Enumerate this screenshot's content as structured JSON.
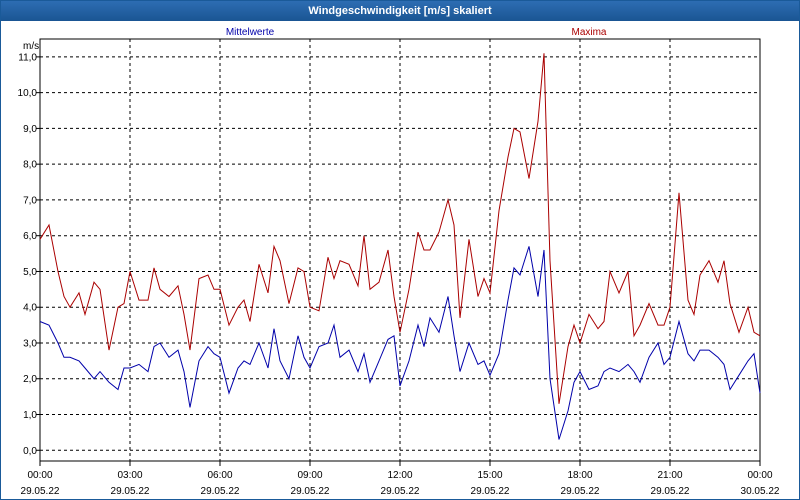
{
  "window": {
    "title": "Windgeschwindigkeit [m/s] skaliert"
  },
  "chart_data": {
    "type": "line",
    "ylabel": "m/s",
    "ylim": [
      -0.3,
      11.5
    ],
    "yticks": [
      0,
      1,
      2,
      3,
      4,
      5,
      6,
      7,
      8,
      9,
      10,
      11
    ],
    "ytick_labels": [
      "0,0",
      "1,0",
      "2,0",
      "3,0",
      "4,0",
      "5,0",
      "6,0",
      "7,0",
      "8,0",
      "9,0",
      "10,0",
      "11,0"
    ],
    "x_ticks": [
      {
        "time": "00:00",
        "date": "29.05.22"
      },
      {
        "time": "03:00",
        "date": "29.05.22"
      },
      {
        "time": "06:00",
        "date": "29.05.22"
      },
      {
        "time": "09:00",
        "date": "29.05.22"
      },
      {
        "time": "12:00",
        "date": "29.05.22"
      },
      {
        "time": "15:00",
        "date": "29.05.22"
      },
      {
        "time": "18:00",
        "date": "29.05.22"
      },
      {
        "time": "21:00",
        "date": "29.05.22"
      },
      {
        "time": "00:00",
        "date": "30.05.22"
      }
    ],
    "grid": true,
    "colors": {
      "mittelwerte": "#0000aa",
      "maxima": "#aa0000",
      "grid": "#000000"
    },
    "series": [
      {
        "name": "Mittelwerte",
        "color": "#0000aa",
        "x_hours": [
          0.0,
          0.3,
          0.6,
          0.8,
          1.0,
          1.3,
          1.5,
          1.8,
          2.0,
          2.3,
          2.6,
          2.8,
          3.0,
          3.3,
          3.6,
          3.8,
          4.0,
          4.3,
          4.6,
          4.8,
          5.0,
          5.3,
          5.6,
          5.8,
          6.0,
          6.3,
          6.6,
          6.8,
          7.0,
          7.3,
          7.6,
          7.8,
          8.0,
          8.3,
          8.6,
          8.8,
          9.0,
          9.3,
          9.6,
          9.8,
          10.0,
          10.3,
          10.6,
          10.8,
          11.0,
          11.3,
          11.6,
          11.8,
          12.0,
          12.3,
          12.6,
          12.8,
          13.0,
          13.3,
          13.6,
          13.8,
          14.0,
          14.3,
          14.6,
          14.8,
          15.0,
          15.3,
          15.6,
          15.8,
          16.0,
          16.3,
          16.6,
          16.8,
          17.0,
          17.3,
          17.6,
          17.8,
          18.0,
          18.3,
          18.6,
          18.8,
          19.0,
          19.3,
          19.6,
          19.8,
          20.0,
          20.3,
          20.6,
          20.8,
          21.0,
          21.3,
          21.6,
          21.8,
          22.0,
          22.3,
          22.6,
          22.8,
          23.0,
          23.3,
          23.6,
          23.8,
          24.0
        ],
        "values": [
          3.6,
          3.5,
          3.0,
          2.6,
          2.6,
          2.5,
          2.3,
          2.0,
          2.2,
          1.9,
          1.7,
          2.3,
          2.3,
          2.4,
          2.2,
          2.9,
          3.0,
          2.6,
          2.8,
          2.2,
          1.2,
          2.5,
          2.9,
          2.7,
          2.6,
          1.6,
          2.3,
          2.5,
          2.4,
          3.0,
          2.3,
          3.4,
          2.5,
          2.0,
          3.2,
          2.6,
          2.3,
          2.9,
          3.0,
          3.5,
          2.6,
          2.8,
          2.2,
          2.7,
          1.9,
          2.5,
          3.1,
          3.2,
          1.8,
          2.5,
          3.5,
          2.9,
          3.7,
          3.3,
          4.3,
          3.2,
          2.2,
          3.0,
          2.4,
          2.5,
          2.1,
          2.7,
          4.2,
          5.1,
          4.9,
          5.7,
          4.3,
          5.6,
          2.0,
          0.3,
          1.1,
          1.9,
          2.2,
          1.7,
          1.8,
          2.2,
          2.3,
          2.2,
          2.4,
          2.2,
          1.9,
          2.6,
          3.0,
          2.4,
          2.6,
          3.6,
          2.7,
          2.5,
          2.8,
          2.8,
          2.6,
          2.4,
          1.7,
          2.1,
          2.5,
          2.7,
          1.6
        ]
      },
      {
        "name": "Maxima",
        "color": "#aa0000",
        "x_hours": [
          0.0,
          0.3,
          0.6,
          0.8,
          1.0,
          1.3,
          1.5,
          1.8,
          2.0,
          2.3,
          2.6,
          2.8,
          3.0,
          3.3,
          3.6,
          3.8,
          4.0,
          4.3,
          4.6,
          4.8,
          5.0,
          5.3,
          5.6,
          5.8,
          6.0,
          6.3,
          6.6,
          6.8,
          7.0,
          7.3,
          7.6,
          7.8,
          8.0,
          8.3,
          8.6,
          8.8,
          9.0,
          9.3,
          9.6,
          9.8,
          10.0,
          10.3,
          10.6,
          10.8,
          11.0,
          11.3,
          11.6,
          11.8,
          12.0,
          12.3,
          12.6,
          12.8,
          13.0,
          13.3,
          13.6,
          13.8,
          14.0,
          14.3,
          14.6,
          14.8,
          15.0,
          15.3,
          15.6,
          15.8,
          16.0,
          16.3,
          16.6,
          16.8,
          17.0,
          17.3,
          17.6,
          17.8,
          18.0,
          18.3,
          18.6,
          18.8,
          19.0,
          19.3,
          19.6,
          19.8,
          20.0,
          20.3,
          20.6,
          20.8,
          21.0,
          21.3,
          21.6,
          21.8,
          22.0,
          22.3,
          22.6,
          22.8,
          23.0,
          23.3,
          23.6,
          23.8,
          24.0
        ],
        "values": [
          5.9,
          6.3,
          5.0,
          4.3,
          4.0,
          4.4,
          3.8,
          4.7,
          4.5,
          2.8,
          4.0,
          4.1,
          5.0,
          4.2,
          4.2,
          5.1,
          4.5,
          4.3,
          4.6,
          3.8,
          2.8,
          4.8,
          4.9,
          4.5,
          4.5,
          3.5,
          4.0,
          4.2,
          3.6,
          5.2,
          4.4,
          5.7,
          5.3,
          4.1,
          5.1,
          5.0,
          4.0,
          3.9,
          5.4,
          4.8,
          5.3,
          5.2,
          4.6,
          6.0,
          4.5,
          4.7,
          5.6,
          4.3,
          3.3,
          4.5,
          6.1,
          5.6,
          5.6,
          6.1,
          7.0,
          6.3,
          3.7,
          5.9,
          4.3,
          4.8,
          4.4,
          6.7,
          8.2,
          9.0,
          8.9,
          7.6,
          9.2,
          11.1,
          5.3,
          1.3,
          2.9,
          3.5,
          3.0,
          3.8,
          3.4,
          3.6,
          5.0,
          4.4,
          5.0,
          3.2,
          3.5,
          4.1,
          3.5,
          3.5,
          4.0,
          7.2,
          4.2,
          3.8,
          4.9,
          5.3,
          4.7,
          5.3,
          4.1,
          3.3,
          4.0,
          3.3,
          3.2
        ]
      }
    ]
  }
}
